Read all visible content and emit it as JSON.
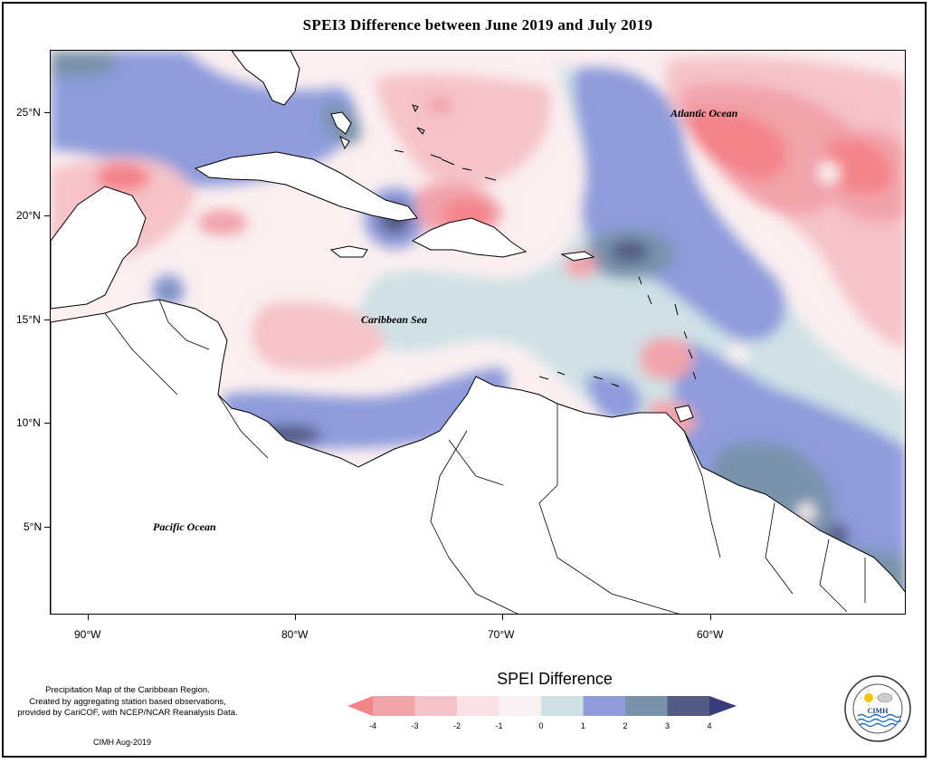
{
  "title": "SPEI3 Difference between June 2019 and July 2019",
  "map": {
    "lat_labels": [
      "25°N",
      "20°N",
      "15°N",
      "10°N",
      "5°N"
    ],
    "lon_labels": [
      "90°W",
      "80°W",
      "70°W",
      "60°W"
    ],
    "ocean_labels": {
      "atlantic": "Atlantic Ocean",
      "caribbean": "Caribbean Sea",
      "pacific": "Pacific Ocean"
    }
  },
  "legend": {
    "title": "SPEI Difference",
    "ticks": [
      "-4",
      "-3",
      "-2",
      "-1",
      "0",
      "1",
      "2",
      "3",
      "4"
    ],
    "colors": [
      "#f4838a",
      "#f2a3aa",
      "#f5c3c8",
      "#fae2e4",
      "#fbf1f2",
      "#cfe1e6",
      "#8f9bdc",
      "#7a93ad",
      "#525b86",
      "#3b3c7a"
    ]
  },
  "credits": {
    "line1": "Precipitation Map of the Caribbean Region.",
    "line2": "Created by aggregating station based observations,",
    "line3": "provided by CariCOF, with NCEP/NCAR Reanalysis Data.",
    "org": "CIMH Aug-2019"
  },
  "logo": {
    "text": "CIMH",
    "ring_text": "Caribbean Institute for Meteorology and Hydrology"
  }
}
